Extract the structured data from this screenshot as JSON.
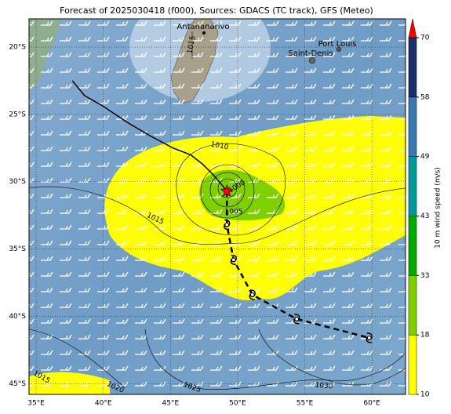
{
  "map": {
    "title": "Forecast of 2025030418 (f000), Sources: GDACS (TC track), GFS (Meteo)",
    "places": [
      "Antananarivo",
      "Port Louis",
      "Saint-Denis"
    ],
    "contour_labels": [
      "1015",
      "1010",
      "1000",
      "1005",
      "1015",
      "1015",
      "1020",
      "1025",
      "1030"
    ],
    "lon_lim": [
      34.47,
      62.5
    ],
    "lat_lim": [
      -17.9,
      -45.8
    ],
    "lon_ticks": [
      {
        "value": 35,
        "label": "35°E"
      },
      {
        "value": 40,
        "label": "40°E"
      },
      {
        "value": 45,
        "label": "45°E"
      },
      {
        "value": 50,
        "label": "50°E"
      },
      {
        "value": 55,
        "label": "55°E"
      },
      {
        "value": 60,
        "label": "60°E"
      }
    ],
    "lat_ticks": [
      {
        "value": -20,
        "label": "20°S"
      },
      {
        "value": -25,
        "label": "25°S"
      },
      {
        "value": -30,
        "label": "30°S"
      },
      {
        "value": -35,
        "label": "35°S"
      },
      {
        "value": -40,
        "label": "40°S"
      },
      {
        "value": -45,
        "label": "45°S"
      }
    ],
    "colorbar": {
      "label": "10 m wind speed (m/s)",
      "ticks": [
        10,
        18,
        33,
        43,
        49,
        58,
        70
      ],
      "colors": [
        "#ffff00",
        "#80d000",
        "#00aa00",
        "#009a9a",
        "#3a78b0",
        "#1a2f6e"
      ],
      "extend_color": "#ff0000"
    },
    "past_track": {
      "lon": [
        37.7,
        38.6,
        40.0,
        41.8,
        43.5,
        45.2,
        46.5,
        47.4,
        48.2,
        48.8,
        49.2
      ],
      "lat": [
        -22.5,
        -23.6,
        -24.4,
        -25.6,
        -26.6,
        -27.5,
        -28.0,
        -28.7,
        -29.5,
        -30.2,
        -30.7
      ]
    },
    "track": {
      "lon": [
        49.2,
        49.2,
        49.7,
        51.1,
        54.4,
        59.8
      ],
      "lat": [
        -30.7,
        -33.2,
        -35.8,
        -38.4,
        -40.2,
        -41.6
      ]
    }
  }
}
